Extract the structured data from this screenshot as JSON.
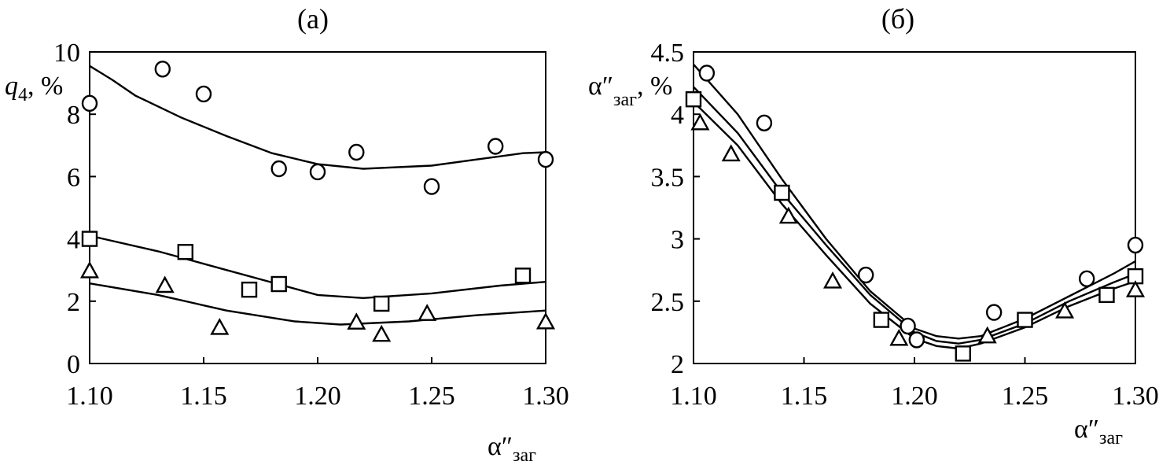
{
  "chart_data": [
    {
      "type": "scatter",
      "title": "(а)",
      "xlim": [
        1.1,
        1.3
      ],
      "ylim": [
        0,
        10
      ],
      "x_ticks": [
        "1.10",
        "1.15",
        "1.20",
        "1.25",
        "1.30"
      ],
      "y_ticks": [
        "0",
        "2",
        "4",
        "6",
        "8",
        "10"
      ],
      "ylabel": {
        "main": "q",
        "sub": "4",
        "tail": ", %"
      },
      "xlabel": {
        "main": "α″",
        "sub": "заг"
      },
      "grid": false,
      "series": [
        {
          "marker": "circle",
          "points": [
            [
              1.1,
              8.35
            ],
            [
              1.132,
              9.45
            ],
            [
              1.15,
              8.65
            ],
            [
              1.183,
              6.25
            ],
            [
              1.2,
              6.15
            ],
            [
              1.217,
              6.78
            ],
            [
              1.25,
              5.68
            ],
            [
              1.278,
              6.97
            ],
            [
              1.3,
              6.55
            ]
          ],
          "fit": [
            [
              1.1,
              9.55
            ],
            [
              1.11,
              9.1
            ],
            [
              1.12,
              8.6
            ],
            [
              1.14,
              7.9
            ],
            [
              1.16,
              7.3
            ],
            [
              1.18,
              6.75
            ],
            [
              1.2,
              6.4
            ],
            [
              1.22,
              6.25
            ],
            [
              1.25,
              6.35
            ],
            [
              1.27,
              6.55
            ],
            [
              1.29,
              6.75
            ],
            [
              1.3,
              6.78
            ]
          ]
        },
        {
          "marker": "square",
          "points": [
            [
              1.1,
              4.0
            ],
            [
              1.142,
              3.58
            ],
            [
              1.17,
              2.37
            ],
            [
              1.183,
              2.55
            ],
            [
              1.228,
              1.92
            ],
            [
              1.29,
              2.82
            ]
          ],
          "fit": [
            [
              1.1,
              4.1
            ],
            [
              1.13,
              3.6
            ],
            [
              1.16,
              3.0
            ],
            [
              1.18,
              2.6
            ],
            [
              1.2,
              2.2
            ],
            [
              1.22,
              2.1
            ],
            [
              1.25,
              2.25
            ],
            [
              1.28,
              2.5
            ],
            [
              1.3,
              2.62
            ]
          ]
        },
        {
          "marker": "triangle",
          "points": [
            [
              1.1,
              2.97
            ],
            [
              1.133,
              2.5
            ],
            [
              1.157,
              1.15
            ],
            [
              1.217,
              1.32
            ],
            [
              1.228,
              0.93
            ],
            [
              1.248,
              1.6
            ],
            [
              1.3,
              1.33
            ]
          ],
          "fit": [
            [
              1.1,
              2.57
            ],
            [
              1.13,
              2.2
            ],
            [
              1.16,
              1.7
            ],
            [
              1.19,
              1.35
            ],
            [
              1.21,
              1.25
            ],
            [
              1.24,
              1.35
            ],
            [
              1.27,
              1.55
            ],
            [
              1.3,
              1.7
            ]
          ]
        }
      ]
    },
    {
      "type": "scatter",
      "title": "(б)",
      "xlim": [
        1.1,
        1.3
      ],
      "ylim": [
        2,
        4.5
      ],
      "x_ticks": [
        "1.10",
        "1.15",
        "1.20",
        "1.25",
        "1.30"
      ],
      "y_ticks": [
        "2",
        "2.5",
        "3",
        "3.5",
        "4",
        "4.5"
      ],
      "ylabel": {
        "main": "α″",
        "sub": "заг",
        "tail": ", %"
      },
      "xlabel": {
        "main": "α″",
        "sub": "заг"
      },
      "grid": false,
      "series": [
        {
          "marker": "circle",
          "points": [
            [
              1.106,
              4.33
            ],
            [
              1.132,
              3.93
            ],
            [
              1.178,
              2.71
            ],
            [
              1.197,
              2.3
            ],
            [
              1.201,
              2.19
            ],
            [
              1.236,
              2.41
            ],
            [
              1.278,
              2.68
            ],
            [
              1.3,
              2.95
            ]
          ],
          "fit": [
            [
              1.1,
              4.4
            ],
            [
              1.12,
              4.0
            ],
            [
              1.14,
              3.48
            ],
            [
              1.16,
              3.0
            ],
            [
              1.18,
              2.58
            ],
            [
              1.2,
              2.28
            ],
            [
              1.21,
              2.22
            ],
            [
              1.22,
              2.2
            ],
            [
              1.23,
              2.22
            ],
            [
              1.25,
              2.36
            ],
            [
              1.27,
              2.54
            ],
            [
              1.29,
              2.72
            ],
            [
              1.3,
              2.82
            ]
          ]
        },
        {
          "marker": "square",
          "points": [
            [
              1.1,
              4.12
            ],
            [
              1.14,
              3.37
            ],
            [
              1.185,
              2.35
            ],
            [
              1.222,
              2.08
            ],
            [
              1.25,
              2.35
            ],
            [
              1.287,
              2.55
            ],
            [
              1.3,
              2.7
            ]
          ],
          "fit": [
            [
              1.1,
              4.22
            ],
            [
              1.12,
              3.85
            ],
            [
              1.14,
              3.37
            ],
            [
              1.16,
              2.95
            ],
            [
              1.18,
              2.55
            ],
            [
              1.2,
              2.25
            ],
            [
              1.21,
              2.18
            ],
            [
              1.22,
              2.16
            ],
            [
              1.23,
              2.19
            ],
            [
              1.25,
              2.32
            ],
            [
              1.27,
              2.5
            ],
            [
              1.29,
              2.65
            ],
            [
              1.3,
              2.72
            ]
          ]
        },
        {
          "marker": "triangle",
          "points": [
            [
              1.103,
              3.93
            ],
            [
              1.117,
              3.68
            ],
            [
              1.143,
              3.18
            ],
            [
              1.163,
              2.66
            ],
            [
              1.193,
              2.2
            ],
            [
              1.233,
              2.22
            ],
            [
              1.268,
              2.42
            ],
            [
              1.3,
              2.59
            ]
          ],
          "fit": [
            [
              1.1,
              4.1
            ],
            [
              1.12,
              3.75
            ],
            [
              1.14,
              3.28
            ],
            [
              1.16,
              2.87
            ],
            [
              1.18,
              2.48
            ],
            [
              1.2,
              2.2
            ],
            [
              1.21,
              2.14
            ],
            [
              1.22,
              2.12
            ],
            [
              1.23,
              2.16
            ],
            [
              1.25,
              2.29
            ],
            [
              1.27,
              2.46
            ],
            [
              1.29,
              2.6
            ],
            [
              1.3,
              2.66
            ]
          ]
        }
      ]
    }
  ]
}
